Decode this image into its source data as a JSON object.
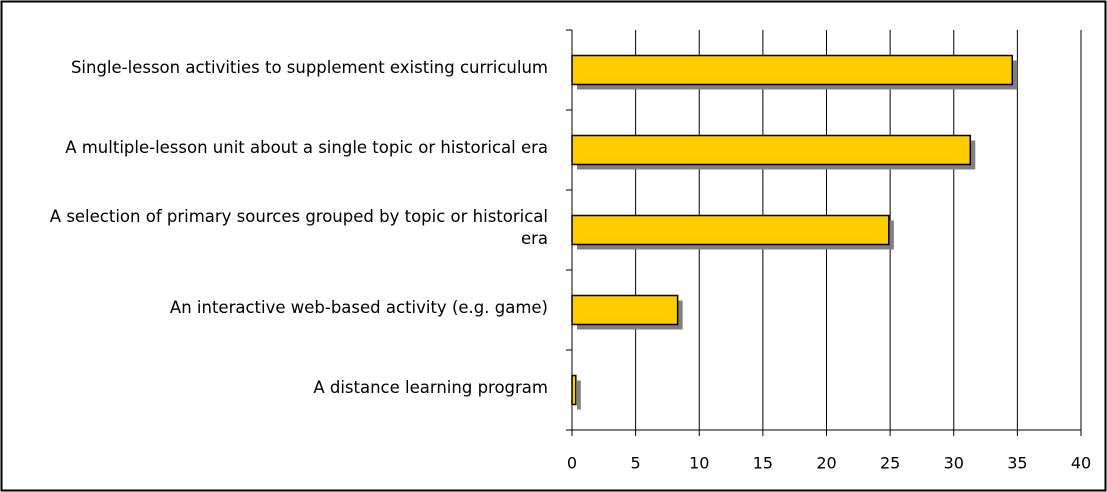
{
  "chart_data": {
    "type": "barh",
    "categories": [
      "Single-lesson activities to supplement existing curriculum",
      "A multiple-lesson unit about a single topic or historical era",
      "A selection of primary sources grouped by topic or historical era",
      "An interactive web-based activity (e.g. game)",
      "A distance learning program"
    ],
    "values": [
      34.6,
      31.3,
      24.9,
      8.3,
      0.3
    ],
    "color": "#ffcc00",
    "xlim": [
      0,
      40
    ],
    "xticks": [
      0,
      5,
      10,
      15,
      20,
      25,
      30,
      35,
      40
    ],
    "grid": true
  }
}
